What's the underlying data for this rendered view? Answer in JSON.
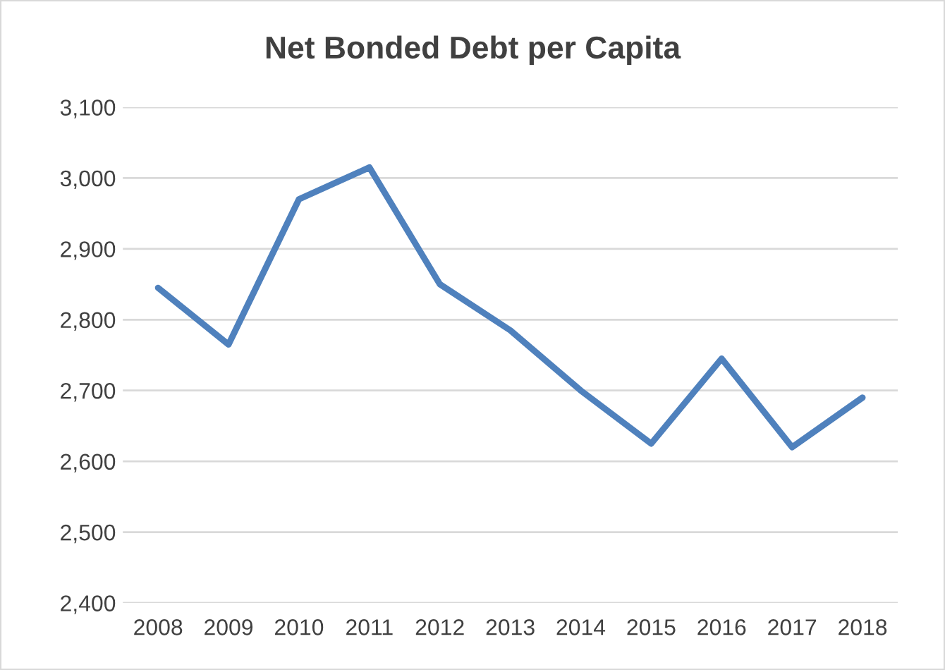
{
  "chart_data": {
    "type": "line",
    "title": "Net Bonded Debt per Capita",
    "categories": [
      "2008",
      "2009",
      "2010",
      "2011",
      "2012",
      "2013",
      "2014",
      "2015",
      "2016",
      "2017",
      "2018"
    ],
    "series": [
      {
        "color": "#4f81bd",
        "values": [
          2845,
          2765,
          2970,
          3015,
          2850,
          2785,
          2700,
          2625,
          2745,
          2620,
          2690
        ]
      }
    ],
    "ylim": [
      2400,
      3100
    ],
    "yticks": [
      {
        "value": 2400,
        "label": "2,400"
      },
      {
        "value": 2500,
        "label": "2,500"
      },
      {
        "value": 2600,
        "label": "2,600"
      },
      {
        "value": 2700,
        "label": "2,700"
      },
      {
        "value": 2800,
        "label": "2,800"
      },
      {
        "value": 2900,
        "label": "2,900"
      },
      {
        "value": 3000,
        "label": "3,000"
      },
      {
        "value": 3100,
        "label": "3,100"
      }
    ],
    "grid": "y",
    "marker": "none",
    "line_style": "solid",
    "legend": false
  }
}
